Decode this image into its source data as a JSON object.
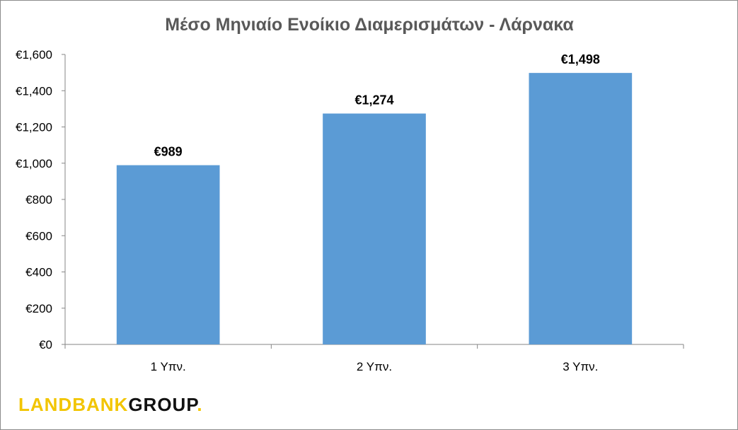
{
  "chart_data": {
    "type": "bar",
    "title": "Μέσο Μηνιαίο Ενοίκιο Διαμερισμάτων - Λάρνακα",
    "categories": [
      "1 Υπν.",
      "2 Υπν.",
      "3 Υπν."
    ],
    "values": [
      989,
      1274,
      1498
    ],
    "value_labels": [
      "€989",
      "€1,274",
      "€1,498"
    ],
    "ylim": [
      0,
      1600
    ],
    "y_ticks": [
      0,
      200,
      400,
      600,
      800,
      1000,
      1200,
      1400,
      1600
    ],
    "y_tick_labels": [
      "€0",
      "€200",
      "€400",
      "€600",
      "€800",
      "€1,000",
      "€1,200",
      "€1,400",
      "€1,600"
    ],
    "grid": false,
    "bar_color": "#5b9bd5",
    "xlabel": "",
    "ylabel": ""
  },
  "logo": {
    "part1": "LANDBANK",
    "part2": "GROUP",
    "dot": ".",
    "color_accent": "#f2c500"
  }
}
